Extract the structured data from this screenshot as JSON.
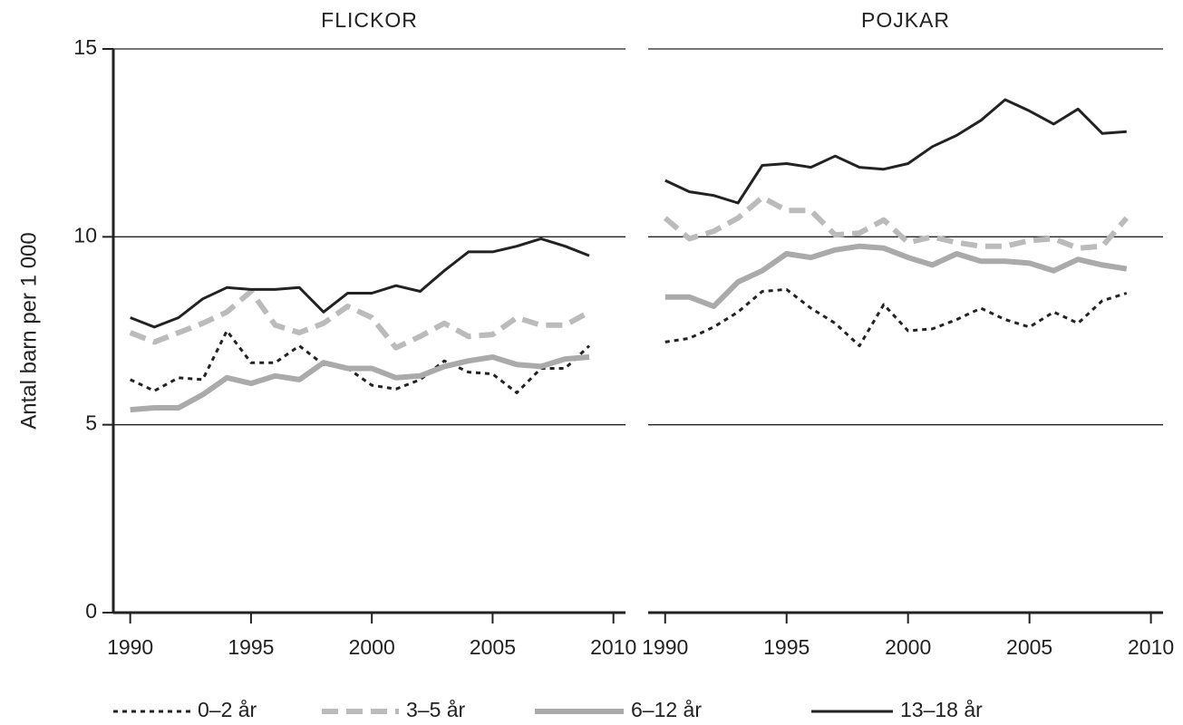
{
  "chart_data": [
    {
      "type": "line",
      "title": "FLICKOR",
      "ylabel": "Antal barn per 1 000",
      "x": [
        1990,
        1991,
        1992,
        1993,
        1994,
        1995,
        1996,
        1997,
        1998,
        1999,
        2000,
        2001,
        2002,
        2003,
        2004,
        2005,
        2006,
        2007,
        2008,
        2009
      ],
      "xlim": [
        1989.3,
        2010.5
      ],
      "xticks": [
        1990,
        1995,
        2000,
        2005,
        2010
      ],
      "ylim": [
        0,
        15
      ],
      "yticks": [
        0,
        5,
        10,
        15
      ],
      "grid": true,
      "series": [
        {
          "name": "0–2 år",
          "color": "#222222",
          "style": "dotted",
          "weight": "thin",
          "values": [
            6.2,
            5.9,
            6.25,
            6.2,
            7.5,
            6.65,
            6.65,
            7.1,
            6.6,
            6.5,
            6.05,
            5.95,
            6.2,
            6.7,
            6.4,
            6.35,
            5.85,
            6.5,
            6.5,
            7.1
          ]
        },
        {
          "name": "3–5 år",
          "color": "#bbbbbb",
          "style": "dashed",
          "weight": "thick",
          "values": [
            7.45,
            7.2,
            7.45,
            7.7,
            8.0,
            8.55,
            7.65,
            7.45,
            7.7,
            8.15,
            7.85,
            7.05,
            7.35,
            7.7,
            7.35,
            7.4,
            7.85,
            7.65,
            7.65,
            8.0
          ]
        },
        {
          "name": "6–12 år",
          "color": "#aaaaaa",
          "style": "solid",
          "weight": "thick",
          "values": [
            5.4,
            5.45,
            5.45,
            5.8,
            6.25,
            6.1,
            6.3,
            6.2,
            6.65,
            6.5,
            6.5,
            6.25,
            6.3,
            6.55,
            6.7,
            6.8,
            6.6,
            6.55,
            6.75,
            6.8
          ]
        },
        {
          "name": "13–18 år",
          "color": "#222222",
          "style": "solid",
          "weight": "thin",
          "values": [
            7.85,
            7.6,
            7.85,
            8.35,
            8.65,
            8.6,
            8.6,
            8.65,
            8.0,
            8.5,
            8.5,
            8.7,
            8.55,
            9.1,
            9.6,
            9.6,
            9.75,
            9.95,
            9.75,
            9.5
          ]
        }
      ]
    },
    {
      "type": "line",
      "title": "POJKAR",
      "x": [
        1990,
        1991,
        1992,
        1993,
        1994,
        1995,
        1996,
        1997,
        1998,
        1999,
        2000,
        2001,
        2002,
        2003,
        2004,
        2005,
        2006,
        2007,
        2008,
        2009
      ],
      "xlim": [
        1989.3,
        2010.5
      ],
      "xticks": [
        1990,
        1995,
        2000,
        2005,
        2010
      ],
      "ylim": [
        0,
        15
      ],
      "yticks": [
        0,
        5,
        10,
        15
      ],
      "grid": true,
      "series": [
        {
          "name": "0–2 år",
          "color": "#222222",
          "style": "dotted",
          "weight": "thin",
          "values": [
            7.2,
            7.3,
            7.6,
            8.0,
            8.55,
            8.6,
            8.1,
            7.7,
            7.1,
            8.2,
            7.5,
            7.55,
            7.8,
            8.1,
            7.8,
            7.6,
            8.0,
            7.7,
            8.3,
            8.5
          ]
        },
        {
          "name": "3–5 år",
          "color": "#bbbbbb",
          "style": "dashed",
          "weight": "thick",
          "values": [
            10.5,
            9.95,
            10.15,
            10.5,
            11.05,
            10.7,
            10.7,
            10.05,
            10.1,
            10.45,
            9.85,
            10.0,
            9.85,
            9.75,
            9.75,
            9.9,
            9.95,
            9.7,
            9.75,
            10.5
          ]
        },
        {
          "name": "6–12 år",
          "color": "#aaaaaa",
          "style": "solid",
          "weight": "thick",
          "values": [
            8.4,
            8.4,
            8.15,
            8.8,
            9.1,
            9.55,
            9.45,
            9.65,
            9.75,
            9.7,
            9.45,
            9.25,
            9.55,
            9.35,
            9.35,
            9.3,
            9.1,
            9.4,
            9.25,
            9.15
          ]
        },
        {
          "name": "13–18 år",
          "color": "#222222",
          "style": "solid",
          "weight": "thin",
          "values": [
            11.5,
            11.2,
            11.1,
            10.9,
            11.9,
            11.95,
            11.85,
            12.15,
            11.85,
            11.8,
            11.95,
            12.4,
            12.7,
            13.1,
            13.65,
            13.35,
            13.0,
            13.4,
            12.75,
            12.8
          ]
        }
      ]
    }
  ]
}
